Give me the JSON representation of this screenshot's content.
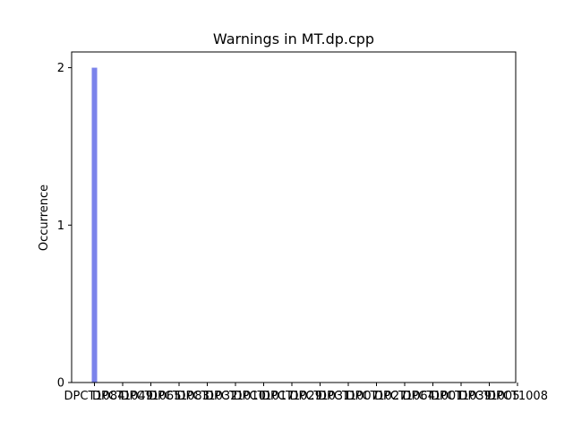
{
  "chart_data": {
    "type": "bar",
    "title": "Warnings in MT.dp.cpp",
    "xlabel": "",
    "ylabel": "Occurrence",
    "categories": [
      "DPCT1084",
      "DPCT1049",
      "DPCT1065",
      "DPCT1083",
      "DPCT1032",
      "DPCT1010",
      "DPCT1017",
      "DPCT1029",
      "DPCT1031",
      "DPCT1007",
      "DPCT1027",
      "DPCT1064",
      "DPCT1001",
      "DPCT1039",
      "DPCT1005",
      "DPCT1008"
    ],
    "category_labels": [
      "DPCT1084",
      "DPCT1049",
      "DPCT1065",
      "DPCT1083",
      "DPCT1032",
      "DPCT1010",
      "DPCT1017",
      "DPCT1029",
      "DPCT1031",
      "DPCT1007",
      "DPCT1027",
      "DPCT1064",
      "DPCT1001",
      "DPCT1039",
      "DPCT1005",
      "DPCT1008"
    ],
    "values": [
      2,
      0,
      0,
      0,
      0,
      0,
      0,
      0,
      0,
      0,
      0,
      0,
      0,
      0,
      0,
      0
    ],
    "ylim": [
      0,
      2.1
    ],
    "yticks": [
      0,
      1,
      2
    ],
    "bar_color": "#7b83eb",
    "grid": false
  }
}
